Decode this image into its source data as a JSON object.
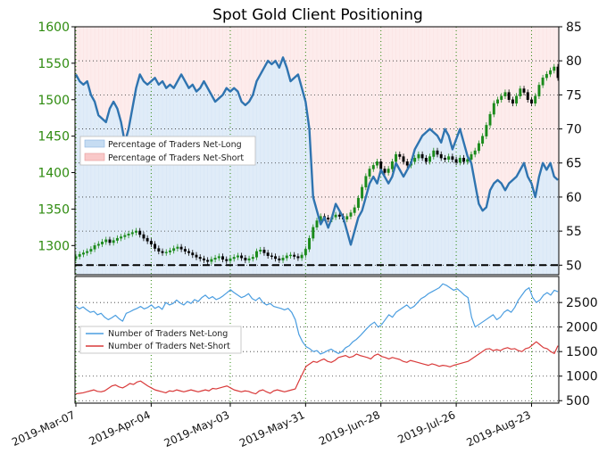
{
  "chart_data": [
    {
      "type": "area",
      "title": "Spot Gold Client Positioning",
      "x_tick_labels": [
        "2019-Mar-07",
        "2019-Apr-04",
        "2019-May-03",
        "2019-May-31",
        "2019-Jun-28",
        "2019-Jul-26",
        "2019-Aug-23"
      ],
      "left_axis": {
        "ylim": [
          1260,
          1600
        ],
        "ticks": [
          1300,
          1350,
          1400,
          1450,
          1500,
          1550,
          1600
        ]
      },
      "right_axis": {
        "ylim": [
          48.6,
          85
        ],
        "ticks": [
          50,
          55,
          60,
          65,
          70,
          75,
          80,
          85
        ]
      },
      "grid": true,
      "legend_position": "left-middle",
      "colors": {
        "net_long_fill": "#c6dcf2",
        "net_short_fill": "#f9c8c8",
        "sentiment_line": "#2f74b0",
        "bull_candle": "#1a8a1a",
        "bear_candle": "#000000",
        "baseline": "#000000"
      },
      "legend": [
        "Percentage of Traders Net-Long",
        "Percentage of Traders Net-Short"
      ],
      "baseline_value": 50,
      "series": [
        {
          "name": "Percentage of Traders Net-Long",
          "axis": "right",
          "values": [
            78,
            77,
            76.5,
            77,
            75,
            74,
            72,
            71.5,
            71,
            73,
            74,
            73,
            71,
            68,
            70,
            73,
            76,
            78,
            77,
            76.5,
            77,
            77.5,
            76.5,
            77,
            76,
            76.5,
            76,
            77,
            78,
            77,
            76,
            76.5,
            75.5,
            76,
            77,
            76,
            75,
            74,
            74.5,
            75,
            76,
            75.5,
            76,
            75.5,
            74,
            73.5,
            74,
            75,
            77,
            78,
            79,
            80,
            79.5,
            80,
            79,
            80.5,
            79,
            77,
            77.5,
            78,
            76,
            74,
            70,
            60,
            58,
            56,
            57,
            55.5,
            57,
            59,
            58,
            57,
            55,
            53,
            55,
            57,
            58,
            60,
            62,
            63,
            62,
            64,
            63,
            62,
            63,
            65,
            64,
            63,
            64,
            65,
            67,
            68,
            69,
            69.5,
            70,
            69.5,
            69,
            68,
            70,
            69,
            67,
            68.5,
            70,
            68,
            66,
            65,
            62,
            59,
            58,
            58.5,
            61,
            62,
            62.5,
            62,
            61,
            62,
            62.5,
            63,
            64,
            65,
            63,
            62,
            60,
            63,
            65,
            64,
            65,
            63,
            62.5
          ]
        },
        {
          "name": "Spot Gold",
          "axis": "left",
          "type": "candlestick",
          "values": [
            1285,
            1288,
            1290,
            1292,
            1295,
            1300,
            1302,
            1305,
            1308,
            1304,
            1307,
            1310,
            1312,
            1314,
            1316,
            1318,
            1320,
            1315,
            1310,
            1306,
            1302,
            1296,
            1292,
            1290,
            1291,
            1293,
            1296,
            1298,
            1295,
            1292,
            1290,
            1287,
            1284,
            1282,
            1280,
            1278,
            1281,
            1283,
            1285,
            1281,
            1279,
            1282,
            1284,
            1286,
            1283,
            1280,
            1282,
            1284,
            1292,
            1294,
            1290,
            1286,
            1285,
            1282,
            1280,
            1283,
            1286,
            1287,
            1285,
            1283,
            1287,
            1295,
            1310,
            1325,
            1334,
            1340,
            1338,
            1336,
            1339,
            1342,
            1340,
            1336,
            1340,
            1345,
            1352,
            1365,
            1380,
            1395,
            1405,
            1410,
            1415,
            1405,
            1400,
            1405,
            1415,
            1425,
            1422,
            1415,
            1410,
            1415,
            1420,
            1425,
            1420,
            1415,
            1422,
            1430,
            1425,
            1420,
            1418,
            1422,
            1418,
            1414,
            1420,
            1415,
            1418,
            1425,
            1430,
            1440,
            1450,
            1465,
            1480,
            1495,
            1500,
            1505,
            1510,
            1500,
            1495,
            1505,
            1515,
            1510,
            1500,
            1495,
            1505,
            1520,
            1530,
            1535,
            1540,
            1545,
            1530,
            1525,
            1528
          ]
        }
      ]
    },
    {
      "type": "line",
      "title": "",
      "right_axis": {
        "ylim": [
          450,
          3030
        ],
        "ticks": [
          500,
          1000,
          1500,
          2000,
          2500
        ]
      },
      "grid": true,
      "legend_position": "left-middle",
      "legend": [
        "Number of Traders Net-Long",
        "Number of Traders Net-Short"
      ],
      "series": [
        {
          "name": "Number of Traders Net-Long",
          "color": "#4a9de0",
          "values": [
            2420,
            2370,
            2410,
            2350,
            2300,
            2320,
            2250,
            2280,
            2200,
            2150,
            2190,
            2240,
            2170,
            2120,
            2280,
            2310,
            2350,
            2380,
            2420,
            2370,
            2400,
            2450,
            2380,
            2420,
            2360,
            2500,
            2450,
            2480,
            2550,
            2490,
            2450,
            2520,
            2480,
            2560,
            2520,
            2600,
            2650,
            2580,
            2620,
            2560,
            2590,
            2640,
            2700,
            2760,
            2700,
            2650,
            2600,
            2630,
            2680,
            2580,
            2540,
            2600,
            2500,
            2450,
            2480,
            2420,
            2400,
            2380,
            2350,
            2380,
            2300,
            2150,
            1850,
            1700,
            1600,
            1560,
            1500,
            1520,
            1450,
            1480,
            1520,
            1550,
            1500,
            1460,
            1500,
            1580,
            1620,
            1700,
            1750,
            1820,
            1900,
            1980,
            2050,
            2100,
            2000,
            2050,
            2150,
            2250,
            2200,
            2300,
            2350,
            2400,
            2450,
            2380,
            2420,
            2500,
            2580,
            2620,
            2680,
            2720,
            2760,
            2800,
            2880,
            2850,
            2800,
            2750,
            2780,
            2720,
            2650,
            2600,
            2200,
            2000,
            2050,
            2100,
            2150,
            2200,
            2250,
            2150,
            2200,
            2300,
            2350,
            2300,
            2400,
            2550,
            2650,
            2750,
            2800,
            2600,
            2500,
            2550,
            2650,
            2700,
            2650,
            2750,
            2720
          ]
        },
        {
          "name": "Number of Traders Net-Short",
          "color": "#d93a3a",
          "values": [
            640,
            650,
            660,
            680,
            700,
            720,
            690,
            680,
            700,
            750,
            800,
            820,
            780,
            760,
            800,
            850,
            830,
            880,
            900,
            850,
            800,
            760,
            720,
            700,
            680,
            660,
            700,
            690,
            720,
            700,
            680,
            700,
            720,
            700,
            680,
            700,
            720,
            700,
            750,
            740,
            760,
            780,
            800,
            760,
            720,
            700,
            680,
            700,
            690,
            660,
            640,
            700,
            720,
            680,
            650,
            700,
            720,
            700,
            680,
            700,
            720,
            740,
            900,
            1050,
            1200,
            1250,
            1300,
            1280,
            1320,
            1350,
            1300,
            1280,
            1320,
            1380,
            1400,
            1420,
            1380,
            1400,
            1450,
            1420,
            1400,
            1380,
            1350,
            1420,
            1450,
            1400,
            1380,
            1350,
            1380,
            1360,
            1340,
            1300,
            1280,
            1320,
            1300,
            1280,
            1260,
            1240,
            1220,
            1250,
            1230,
            1200,
            1220,
            1210,
            1190,
            1220,
            1240,
            1260,
            1280,
            1300,
            1350,
            1400,
            1450,
            1500,
            1550,
            1560,
            1520,
            1540,
            1520,
            1560,
            1580,
            1550,
            1560,
            1520,
            1500,
            1560,
            1580,
            1640,
            1700,
            1640,
            1580,
            1560,
            1500,
            1460,
            1620
          ]
        }
      ]
    }
  ]
}
